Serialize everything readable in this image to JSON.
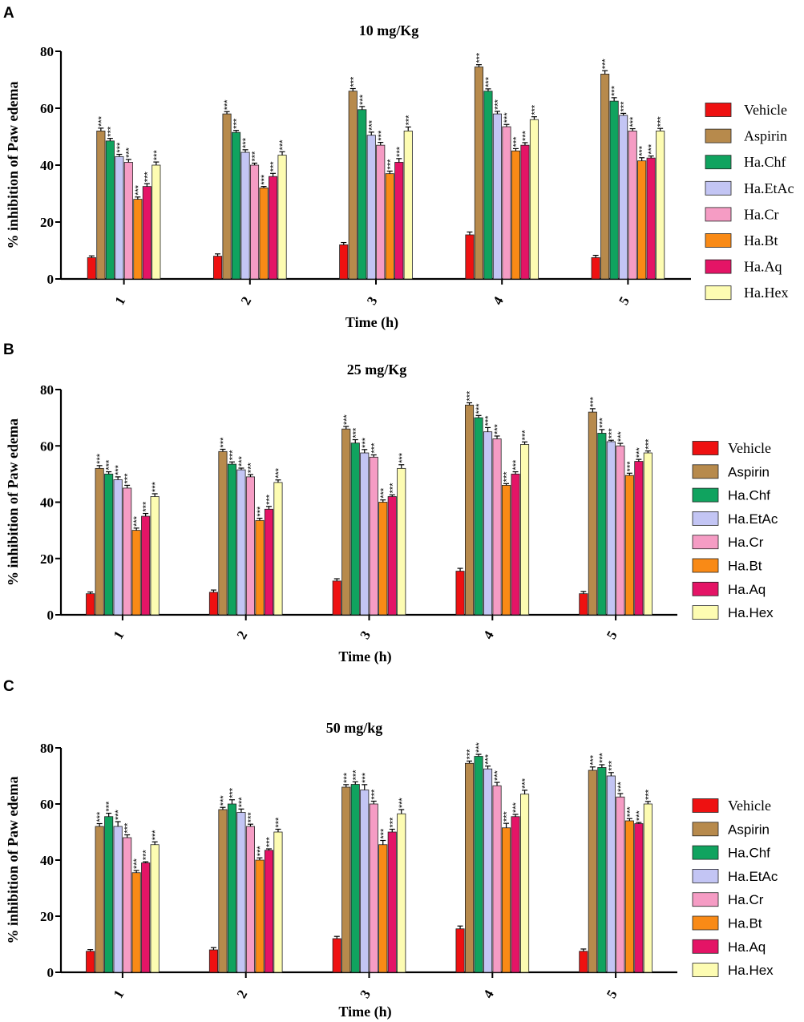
{
  "chart_data": [
    {
      "type": "bar",
      "panel": "A",
      "title": "10 mg/Kg",
      "xlabel": "Time (h)",
      "ylabel": "% inhibition of Paw edema",
      "ylim": [
        0,
        80
      ],
      "yticks": [
        "0",
        "20",
        "40",
        "60",
        "80"
      ],
      "categories": [
        "1",
        "2",
        "3",
        "4",
        "5"
      ],
      "significance": "***",
      "series": [
        {
          "name": "Vehicle",
          "color": "#ee1111",
          "values": [
            7.5,
            8,
            12,
            15.5,
            7.5
          ],
          "errors": [
            0.6,
            0.8,
            0.8,
            1.0,
            0.8
          ],
          "sig": [
            false,
            false,
            false,
            false,
            false
          ]
        },
        {
          "name": "Aspirin",
          "color": "#b78a4c",
          "values": [
            52,
            58,
            66,
            74.5,
            72
          ],
          "errors": [
            1.0,
            0.8,
            0.9,
            0.8,
            1.2
          ],
          "sig": [
            true,
            true,
            true,
            true,
            true
          ]
        },
        {
          "name": "Ha.Chf",
          "color": "#10a35f",
          "values": [
            48.5,
            51.5,
            59.5,
            66,
            62.5
          ],
          "errors": [
            0.9,
            0.7,
            1.1,
            0.8,
            1.2
          ],
          "sig": [
            true,
            true,
            true,
            true,
            true
          ]
        },
        {
          "name": "Ha.EtAc",
          "color": "#c3c5f4",
          "values": [
            43,
            44.5,
            50.5,
            58,
            57.5
          ],
          "errors": [
            0.8,
            0.9,
            1.1,
            0.9,
            0.7
          ],
          "sig": [
            true,
            true,
            true,
            true,
            true
          ]
        },
        {
          "name": "Ha.Cr",
          "color": "#f59cc4",
          "values": [
            41,
            40,
            47,
            53.5,
            52
          ],
          "errors": [
            1.0,
            0.7,
            1.0,
            0.8,
            0.8
          ],
          "sig": [
            true,
            true,
            true,
            true,
            true
          ]
        },
        {
          "name": "Ha.Bt",
          "color": "#f98a16",
          "values": [
            28,
            32,
            37,
            45,
            41.5
          ],
          "errors": [
            0.8,
            0.5,
            0.9,
            0.8,
            1.1
          ],
          "sig": [
            true,
            true,
            true,
            true,
            true
          ]
        },
        {
          "name": "Ha.Aq",
          "color": "#e41466",
          "values": [
            32.5,
            36,
            41,
            47,
            42.5
          ],
          "errors": [
            1.0,
            1.1,
            1.3,
            0.9,
            0.7
          ],
          "sig": [
            true,
            true,
            true,
            true,
            true
          ]
        },
        {
          "name": "Ha.Hex",
          "color": "#fdfcb2",
          "values": [
            40,
            43.5,
            52,
            56,
            52
          ],
          "errors": [
            1.1,
            1.2,
            1.4,
            1.0,
            0.9
          ],
          "sig": [
            true,
            true,
            true,
            true,
            true
          ]
        }
      ]
    },
    {
      "type": "bar",
      "panel": "B",
      "title": "25 mg/Kg",
      "xlabel": "Time (h)",
      "ylabel": "% inhibition of Paw edema",
      "ylim": [
        0,
        80
      ],
      "yticks": [
        "0",
        "20",
        "40",
        "60",
        "80"
      ],
      "categories": [
        "1",
        "2",
        "3",
        "4",
        "5"
      ],
      "significance": "***",
      "series": [
        {
          "name": "Vehicle",
          "color": "#ee1111",
          "values": [
            7.5,
            8,
            12,
            15.5,
            7.5
          ],
          "errors": [
            0.6,
            0.8,
            0.8,
            1.0,
            0.8
          ],
          "sig": [
            false,
            false,
            false,
            false,
            false
          ]
        },
        {
          "name": "Aspirin",
          "color": "#b78a4c",
          "values": [
            52,
            58,
            66,
            74.5,
            72
          ],
          "errors": [
            1.0,
            0.8,
            0.9,
            0.8,
            1.2
          ],
          "sig": [
            true,
            true,
            true,
            true,
            true
          ]
        },
        {
          "name": "Ha.Chf",
          "color": "#10a35f",
          "values": [
            50,
            53.5,
            61,
            70,
            64.5
          ],
          "errors": [
            0.8,
            0.8,
            1.2,
            0.8,
            1.3
          ],
          "sig": [
            true,
            true,
            true,
            true,
            true
          ]
        },
        {
          "name": "Ha.EtAc",
          "color": "#c3c5f4",
          "values": [
            48,
            51.5,
            57.5,
            65,
            61.5
          ],
          "errors": [
            1.0,
            0.6,
            1.2,
            1.5,
            0.5
          ],
          "sig": [
            true,
            true,
            true,
            true,
            true
          ]
        },
        {
          "name": "Ha.Cr",
          "color": "#f59cc4",
          "values": [
            45,
            49,
            56,
            62.5,
            60
          ],
          "errors": [
            1.0,
            0.8,
            0.8,
            1.0,
            0.9
          ],
          "sig": [
            true,
            true,
            true,
            true,
            true
          ]
        },
        {
          "name": "Ha.Bt",
          "color": "#f98a16",
          "values": [
            30,
            33.5,
            40,
            46,
            49.5
          ],
          "errors": [
            0.8,
            0.8,
            0.8,
            0.6,
            0.8
          ],
          "sig": [
            true,
            true,
            true,
            true,
            true
          ]
        },
        {
          "name": "Ha.Aq",
          "color": "#e41466",
          "values": [
            35,
            37.5,
            42,
            50,
            54.5
          ],
          "errors": [
            1.0,
            1.0,
            0.6,
            0.8,
            0.7
          ],
          "sig": [
            true,
            true,
            true,
            true,
            true
          ]
        },
        {
          "name": "Ha.Hex",
          "color": "#fdfcb2",
          "values": [
            42,
            47,
            52,
            60.5,
            57.5
          ],
          "errors": [
            1.0,
            0.9,
            1.3,
            0.9,
            0.7
          ],
          "sig": [
            true,
            true,
            true,
            true,
            true
          ]
        }
      ]
    },
    {
      "type": "bar",
      "panel": "C",
      "title": "50 mg/kg",
      "xlabel": "Time (h)",
      "ylabel": "% inhibition of Paw edema",
      "ylim": [
        0,
        80
      ],
      "yticks": [
        "0",
        "20",
        "40",
        "60",
        "80"
      ],
      "categories": [
        "1",
        "2",
        "3",
        "4",
        "5"
      ],
      "significance": "***",
      "series": [
        {
          "name": "Vehicle",
          "color": "#ee1111",
          "values": [
            7.5,
            8,
            12,
            15.5,
            7.5
          ],
          "errors": [
            0.6,
            0.8,
            0.8,
            1.0,
            0.8
          ],
          "sig": [
            false,
            false,
            false,
            false,
            false
          ]
        },
        {
          "name": "Aspirin",
          "color": "#b78a4c",
          "values": [
            52,
            58,
            66,
            74.5,
            72
          ],
          "errors": [
            1.0,
            0.8,
            0.9,
            0.8,
            1.2
          ],
          "sig": [
            true,
            true,
            true,
            true,
            true
          ]
        },
        {
          "name": "Ha.Chf",
          "color": "#10a35f",
          "values": [
            55.5,
            60,
            67,
            77,
            73
          ],
          "errors": [
            1.2,
            1.5,
            0.9,
            0.7,
            1.0
          ],
          "sig": [
            true,
            true,
            true,
            true,
            true
          ]
        },
        {
          "name": "Ha.EtAc",
          "color": "#c3c5f4",
          "values": [
            52,
            57,
            65,
            72.5,
            70
          ],
          "errors": [
            1.7,
            1.2,
            1.9,
            1.0,
            1.2
          ],
          "sig": [
            true,
            true,
            true,
            true,
            true
          ]
        },
        {
          "name": "Ha.Cr",
          "color": "#f59cc4",
          "values": [
            48,
            52,
            60,
            66.5,
            62.5
          ],
          "errors": [
            1.0,
            0.8,
            1.0,
            1.2,
            1.2
          ],
          "sig": [
            true,
            true,
            true,
            true,
            true
          ]
        },
        {
          "name": "Ha.Bt",
          "color": "#f98a16",
          "values": [
            35.5,
            40,
            45.5,
            51.5,
            54
          ],
          "errors": [
            0.8,
            0.8,
            1.5,
            1.6,
            0.8
          ],
          "sig": [
            true,
            true,
            true,
            true,
            true
          ]
        },
        {
          "name": "Ha.Aq",
          "color": "#e41466",
          "values": [
            39,
            43.5,
            50,
            55.5,
            53
          ],
          "errors": [
            0.4,
            0.5,
            1.0,
            0.8,
            0.4
          ],
          "sig": [
            true,
            true,
            true,
            true,
            true
          ]
        },
        {
          "name": "Ha.Hex",
          "color": "#fdfcb2",
          "values": [
            45.5,
            50,
            56.5,
            63.5,
            60
          ],
          "errors": [
            1.0,
            1.0,
            1.5,
            1.4,
            0.9
          ],
          "sig": [
            true,
            true,
            true,
            true,
            true
          ]
        }
      ]
    }
  ]
}
